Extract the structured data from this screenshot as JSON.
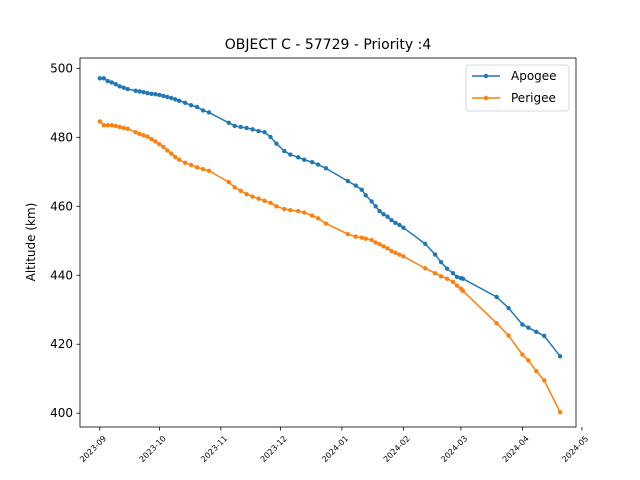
{
  "chart_data": {
    "type": "line",
    "title": "OBJECT C - 57729 - Priority :4",
    "xlabel": "",
    "ylabel": "Altitude (km)",
    "ylim": [
      396,
      503
    ],
    "xlim": [
      "2023-08-22",
      "2024-04-28"
    ],
    "yticks": [
      400,
      420,
      440,
      460,
      480,
      500
    ],
    "xticks": [
      "2023-09",
      "2023-10",
      "2023-11",
      "2023-12",
      "2024-01",
      "2024-02",
      "2024-03",
      "2024-04",
      "2024-05"
    ],
    "grid": false,
    "legend": "top-right",
    "series": [
      {
        "name": "Apogee",
        "color": "#1f77b4",
        "points": [
          [
            "2023-09-01",
            497.1
          ],
          [
            "2023-09-03",
            497.1
          ],
          [
            "2023-09-05",
            496.3
          ],
          [
            "2023-09-07",
            495.9
          ],
          [
            "2023-09-09",
            495.4
          ],
          [
            "2023-09-11",
            494.8
          ],
          [
            "2023-09-13",
            494.4
          ],
          [
            "2023-09-15",
            494.0
          ],
          [
            "2023-09-19",
            493.5
          ],
          [
            "2023-09-21",
            493.3
          ],
          [
            "2023-09-23",
            493.1
          ],
          [
            "2023-09-25",
            492.8
          ],
          [
            "2023-09-27",
            492.6
          ],
          [
            "2023-09-29",
            492.5
          ],
          [
            "2023-10-01",
            492.3
          ],
          [
            "2023-10-03",
            492.0
          ],
          [
            "2023-10-05",
            491.7
          ],
          [
            "2023-10-07",
            491.4
          ],
          [
            "2023-10-09",
            491.0
          ],
          [
            "2023-10-11",
            490.6
          ],
          [
            "2023-10-14",
            490.0
          ],
          [
            "2023-10-17",
            489.3
          ],
          [
            "2023-10-20",
            488.8
          ],
          [
            "2023-10-23",
            487.8
          ],
          [
            "2023-10-26",
            487.2
          ],
          [
            "2023-11-05",
            484.2
          ],
          [
            "2023-11-08",
            483.3
          ],
          [
            "2023-11-11",
            483.0
          ],
          [
            "2023-11-14",
            482.7
          ],
          [
            "2023-11-17",
            482.3
          ],
          [
            "2023-11-20",
            481.8
          ],
          [
            "2023-11-23",
            481.5
          ],
          [
            "2023-11-26",
            480.1
          ],
          [
            "2023-11-29",
            478.2
          ],
          [
            "2023-12-03",
            476.0
          ],
          [
            "2023-12-06",
            475.0
          ],
          [
            "2023-12-10",
            474.2
          ],
          [
            "2023-12-13",
            473.5
          ],
          [
            "2023-12-17",
            472.8
          ],
          [
            "2023-12-20",
            472.1
          ],
          [
            "2023-12-24",
            471.0
          ],
          [
            "2024-01-04",
            467.3
          ],
          [
            "2024-01-08",
            466.0
          ],
          [
            "2024-01-11",
            464.8
          ],
          [
            "2024-01-13",
            463.2
          ],
          [
            "2024-01-16",
            461.4
          ],
          [
            "2024-01-18",
            460.0
          ],
          [
            "2024-01-20",
            458.6
          ],
          [
            "2024-01-22",
            457.7
          ],
          [
            "2024-01-24",
            457.0
          ],
          [
            "2024-01-26",
            456.0
          ],
          [
            "2024-01-28",
            455.2
          ],
          [
            "2024-01-30",
            454.6
          ],
          [
            "2024-02-01",
            453.8
          ],
          [
            "2024-02-12",
            449.1
          ],
          [
            "2024-02-17",
            446.0
          ],
          [
            "2024-02-20",
            443.8
          ],
          [
            "2024-02-23",
            441.9
          ],
          [
            "2024-02-26",
            440.6
          ],
          [
            "2024-02-28",
            439.5
          ],
          [
            "2024-03-01",
            439.2
          ],
          [
            "2024-03-02",
            439.0
          ],
          [
            "2024-03-19",
            433.7
          ],
          [
            "2024-03-25",
            430.5
          ],
          [
            "2024-04-01",
            425.7
          ],
          [
            "2024-04-04",
            424.8
          ],
          [
            "2024-04-08",
            423.6
          ],
          [
            "2024-04-12",
            422.4
          ],
          [
            "2024-04-20",
            416.5
          ]
        ]
      },
      {
        "name": "Perigee",
        "color": "#ff7f0e",
        "points": [
          [
            "2023-09-01",
            484.6
          ],
          [
            "2023-09-03",
            483.5
          ],
          [
            "2023-09-05",
            483.5
          ],
          [
            "2023-09-07",
            483.5
          ],
          [
            "2023-09-09",
            483.3
          ],
          [
            "2023-09-11",
            483.0
          ],
          [
            "2023-09-13",
            482.7
          ],
          [
            "2023-09-15",
            482.5
          ],
          [
            "2023-09-19",
            481.5
          ],
          [
            "2023-09-21",
            481.0
          ],
          [
            "2023-09-23",
            480.6
          ],
          [
            "2023-09-25",
            480.2
          ],
          [
            "2023-09-27",
            479.5
          ],
          [
            "2023-09-29",
            478.8
          ],
          [
            "2023-10-01",
            478.0
          ],
          [
            "2023-10-03",
            477.2
          ],
          [
            "2023-10-05",
            476.2
          ],
          [
            "2023-10-07",
            475.3
          ],
          [
            "2023-10-09",
            474.3
          ],
          [
            "2023-10-11",
            473.5
          ],
          [
            "2023-10-14",
            472.6
          ],
          [
            "2023-10-17",
            472.0
          ],
          [
            "2023-10-20",
            471.3
          ],
          [
            "2023-10-23",
            470.8
          ],
          [
            "2023-10-26",
            470.3
          ],
          [
            "2023-11-05",
            467.0
          ],
          [
            "2023-11-08",
            465.5
          ],
          [
            "2023-11-11",
            464.5
          ],
          [
            "2023-11-14",
            463.5
          ],
          [
            "2023-11-17",
            462.8
          ],
          [
            "2023-11-20",
            462.2
          ],
          [
            "2023-11-23",
            461.6
          ],
          [
            "2023-11-26",
            461.0
          ],
          [
            "2023-11-29",
            460.0
          ],
          [
            "2023-12-03",
            459.2
          ],
          [
            "2023-12-06",
            458.9
          ],
          [
            "2023-12-10",
            458.6
          ],
          [
            "2023-12-13",
            458.2
          ],
          [
            "2023-12-17",
            457.3
          ],
          [
            "2023-12-20",
            456.5
          ],
          [
            "2023-12-24",
            455.0
          ],
          [
            "2024-01-04",
            451.9
          ],
          [
            "2024-01-08",
            451.2
          ],
          [
            "2024-01-11",
            450.9
          ],
          [
            "2024-01-13",
            450.6
          ],
          [
            "2024-01-16",
            450.2
          ],
          [
            "2024-01-18",
            449.5
          ],
          [
            "2024-01-20",
            449.0
          ],
          [
            "2024-01-22",
            448.4
          ],
          [
            "2024-01-24",
            447.8
          ],
          [
            "2024-01-26",
            447.0
          ],
          [
            "2024-01-28",
            446.5
          ],
          [
            "2024-01-30",
            446.0
          ],
          [
            "2024-02-01",
            445.5
          ],
          [
            "2024-02-12",
            442.0
          ],
          [
            "2024-02-17",
            440.6
          ],
          [
            "2024-02-20",
            439.7
          ],
          [
            "2024-02-23",
            439.0
          ],
          [
            "2024-02-26",
            438.1
          ],
          [
            "2024-02-28",
            437.0
          ],
          [
            "2024-03-01",
            436.1
          ],
          [
            "2024-03-02",
            435.5
          ],
          [
            "2024-03-19",
            426.1
          ],
          [
            "2024-03-25",
            422.5
          ],
          [
            "2024-04-01",
            417.0
          ],
          [
            "2024-04-04",
            415.3
          ],
          [
            "2024-04-08",
            412.2
          ],
          [
            "2024-04-12",
            409.5
          ],
          [
            "2024-04-20",
            400.3
          ]
        ]
      }
    ]
  }
}
